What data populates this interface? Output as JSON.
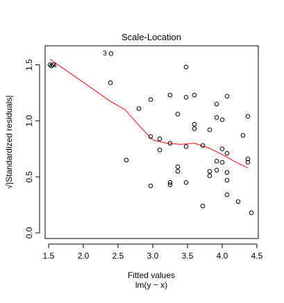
{
  "chart_data": {
    "type": "scatter",
    "title": "Scale-Location",
    "xlabel": "Fitted values",
    "xlabel_sub": "lm(y ~ x)",
    "ylabel": "√|Standardized residuals|",
    "xlim": [
      1.45,
      4.52
    ],
    "ylim": [
      -0.05,
      1.67
    ],
    "x_ticks": [
      1.5,
      2.0,
      2.5,
      3.0,
      3.5,
      4.0,
      4.5
    ],
    "x_tick_labels": [
      "1.5",
      "2.0",
      "2.5",
      "3.0",
      "3.5",
      "4.0",
      "4.5"
    ],
    "y_ticks": [
      0.0,
      0.5,
      1.0,
      1.5
    ],
    "y_tick_labels": [
      "0.0",
      "0.5",
      "1.0",
      "1.5"
    ],
    "grid": false,
    "legend": "none",
    "points": [
      {
        "x": 1.52,
        "y": 1.5
      },
      {
        "x": 1.54,
        "y": 1.49
      },
      {
        "x": 1.56,
        "y": 1.5
      },
      {
        "x": 2.4,
        "y": 1.6
      },
      {
        "x": 2.39,
        "y": 1.34
      },
      {
        "x": 2.62,
        "y": 0.65
      },
      {
        "x": 2.8,
        "y": 1.11
      },
      {
        "x": 2.97,
        "y": 1.19
      },
      {
        "x": 2.97,
        "y": 0.86
      },
      {
        "x": 2.97,
        "y": 0.42
      },
      {
        "x": 3.1,
        "y": 0.84
      },
      {
        "x": 3.1,
        "y": 0.74
      },
      {
        "x": 3.25,
        "y": 1.23
      },
      {
        "x": 3.25,
        "y": 0.8
      },
      {
        "x": 3.25,
        "y": 0.45
      },
      {
        "x": 3.25,
        "y": 0.43
      },
      {
        "x": 3.36,
        "y": 1.06
      },
      {
        "x": 3.36,
        "y": 0.59
      },
      {
        "x": 3.36,
        "y": 0.55
      },
      {
        "x": 3.48,
        "y": 1.48
      },
      {
        "x": 3.48,
        "y": 1.21
      },
      {
        "x": 3.48,
        "y": 0.77
      },
      {
        "x": 3.48,
        "y": 0.45
      },
      {
        "x": 3.6,
        "y": 1.23
      },
      {
        "x": 3.6,
        "y": 0.97
      },
      {
        "x": 3.6,
        "y": 0.93
      },
      {
        "x": 3.72,
        "y": 0.78
      },
      {
        "x": 3.72,
        "y": 0.24
      },
      {
        "x": 3.82,
        "y": 0.92
      },
      {
        "x": 3.82,
        "y": 0.55
      },
      {
        "x": 3.82,
        "y": 0.51
      },
      {
        "x": 3.92,
        "y": 1.15
      },
      {
        "x": 3.92,
        "y": 1.03
      },
      {
        "x": 3.92,
        "y": 0.64
      },
      {
        "x": 3.92,
        "y": 0.56
      },
      {
        "x": 4.0,
        "y": 1.01
      },
      {
        "x": 4.0,
        "y": 0.75
      },
      {
        "x": 4.0,
        "y": 0.63
      },
      {
        "x": 4.07,
        "y": 1.22
      },
      {
        "x": 4.07,
        "y": 0.71
      },
      {
        "x": 4.07,
        "y": 0.54
      },
      {
        "x": 4.07,
        "y": 0.47
      },
      {
        "x": 4.07,
        "y": 0.34
      },
      {
        "x": 4.23,
        "y": 0.28
      },
      {
        "x": 4.3,
        "y": 0.87
      },
      {
        "x": 4.37,
        "y": 1.04
      },
      {
        "x": 4.37,
        "y": 0.66
      },
      {
        "x": 4.37,
        "y": 0.63
      },
      {
        "x": 4.42,
        "y": 0.18
      }
    ],
    "point_labels": [
      {
        "text": "3",
        "x": 2.31,
        "y": 1.6
      },
      {
        "text": "4",
        "x": 1.59,
        "y": 1.49
      }
    ],
    "smooth_line": {
      "color": "#ff0000",
      "x": [
        1.52,
        1.8,
        2.1,
        2.4,
        2.6,
        2.8,
        3.0,
        3.2,
        3.4,
        3.6,
        3.8,
        4.0,
        4.2,
        4.37
      ],
      "y": [
        1.55,
        1.43,
        1.3,
        1.17,
        1.1,
        0.96,
        0.83,
        0.8,
        0.79,
        0.8,
        0.76,
        0.7,
        0.63,
        0.58
      ]
    }
  }
}
